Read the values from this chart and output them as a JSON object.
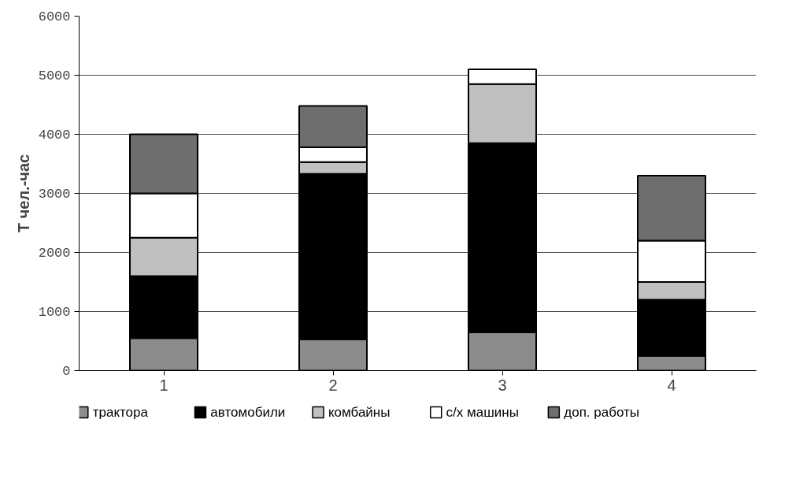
{
  "chart_data": {
    "type": "bar",
    "stacked": true,
    "ylabel": "Т чел.-час",
    "categories": [
      "1",
      "2",
      "3",
      "4"
    ],
    "series": [
      {
        "name": "трактора",
        "color": "#8c8c8c",
        "values": [
          550,
          530,
          650,
          250
        ]
      },
      {
        "name": "автомобили",
        "color": "#000000",
        "values": [
          1050,
          2800,
          3200,
          950
        ]
      },
      {
        "name": "комбайны",
        "color": "#c0c0c0",
        "values": [
          650,
          200,
          1000,
          300
        ]
      },
      {
        "name": "с/х машины",
        "color": "#ffffff",
        "values": [
          750,
          250,
          250,
          700
        ]
      },
      {
        "name": "доп. работы",
        "color": "#6e6e6e",
        "values": [
          1000,
          700,
          null,
          1100
        ]
      }
    ],
    "ylim": [
      0,
      6000
    ],
    "yticks": [
      0,
      1000,
      2000,
      3000,
      4000,
      5000,
      6000
    ],
    "grid": "y",
    "legend": "bottom"
  }
}
